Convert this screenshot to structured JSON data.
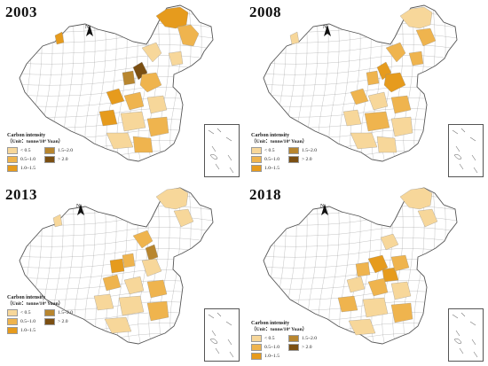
{
  "colors": {
    "c1": "#f7d79a",
    "c2": "#efb44e",
    "c3": "#e69b1d",
    "c4": "#b8862f",
    "c5": "#7b4f12",
    "boundary": "#8a8a8a",
    "outline": "#555555"
  },
  "legend": {
    "title": "Carbon intensity",
    "unit": "（Unit：tonne/10⁴ Yuan）",
    "classes": [
      {
        "label": "< 0.5",
        "color_key": "c1"
      },
      {
        "label": "0.5~1.0",
        "color_key": "c2"
      },
      {
        "label": "1.0~1.5",
        "color_key": "c3"
      },
      {
        "label": "1.5~2.0",
        "color_key": "c4"
      },
      {
        "label": "> 2.0",
        "color_key": "c5"
      }
    ]
  },
  "compass_label": "N",
  "panels": [
    {
      "year": "2003",
      "unit": "（Unit：tonne/10⁴ Yuan）"
    },
    {
      "year": "2008",
      "unit": "（Unit：tonne/10⁴ Yuan）"
    },
    {
      "year": "2013",
      "unit": "（Unit：tonne/10⁴ Yuan）"
    },
    {
      "year": "2018",
      "unit": "（Unit：tonne/10⁴ Yuan）"
    }
  ]
}
